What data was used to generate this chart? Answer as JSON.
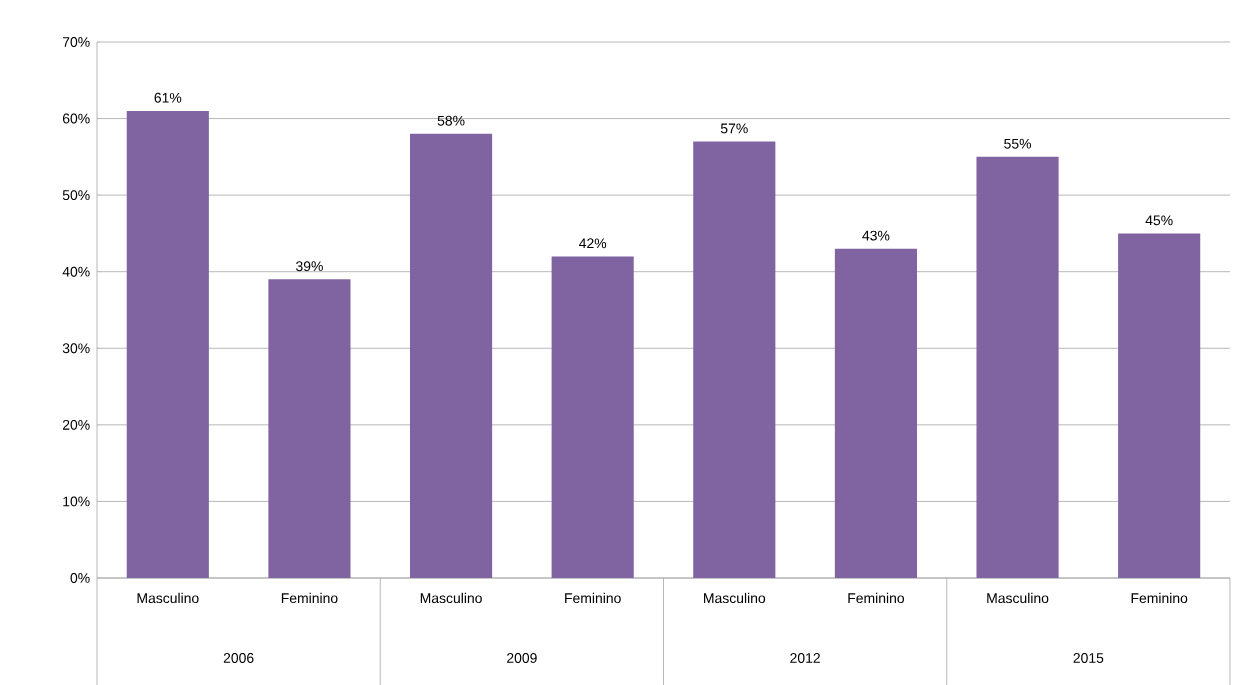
{
  "chart_data": {
    "type": "bar",
    "categories": [
      "Masculino",
      "Feminino",
      "Masculino",
      "Feminino",
      "Masculino",
      "Feminino",
      "Masculino",
      "Feminino"
    ],
    "values": [
      61,
      39,
      58,
      42,
      57,
      43,
      55,
      45
    ],
    "value_labels": [
      "61%",
      "39%",
      "58%",
      "42%",
      "57%",
      "43%",
      "55%",
      "45%"
    ],
    "color": "#8064a2",
    "ylim": [
      0,
      70
    ],
    "yticks": [
      {
        "value": 0,
        "label": "0%"
      },
      {
        "value": 10,
        "label": "10%"
      },
      {
        "value": 20,
        "label": "20%"
      },
      {
        "value": 30,
        "label": "30%"
      },
      {
        "value": 40,
        "label": "40%"
      },
      {
        "value": 50,
        "label": "50%"
      },
      {
        "value": 60,
        "label": "60%"
      },
      {
        "value": 70,
        "label": "70%"
      }
    ],
    "grid": "y",
    "annotations": [
      "2006",
      "2009",
      "2012",
      "2015"
    ]
  }
}
